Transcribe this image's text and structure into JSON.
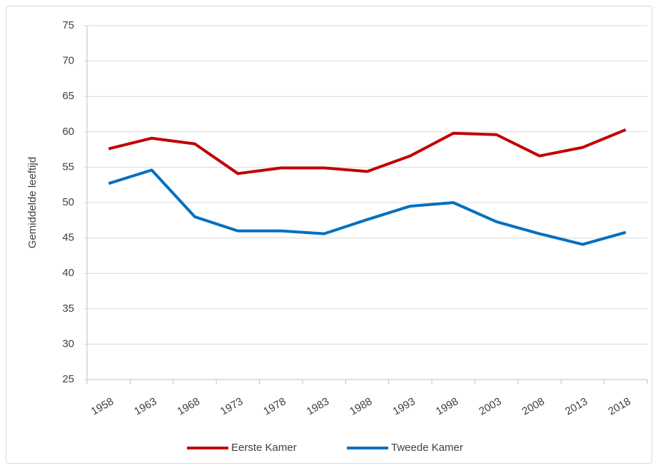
{
  "chart_data": {
    "type": "line",
    "y_label": "Gemiddelde  leeftijd",
    "categories": [
      "1958",
      "1963",
      "1968",
      "1973",
      "1978",
      "1983",
      "1988",
      "1993",
      "1998",
      "2003",
      "2008",
      "2013",
      "2018"
    ],
    "series": [
      {
        "name": "Eerste Kamer",
        "color": "#c00000",
        "values": [
          57.6,
          59.1,
          58.3,
          54.1,
          54.9,
          54.9,
          54.4,
          56.6,
          59.8,
          59.6,
          56.6,
          57.8,
          60.3
        ]
      },
      {
        "name": "Tweede Kamer",
        "color": "#0070c0",
        "values": [
          52.7,
          54.6,
          48.0,
          46.0,
          46.0,
          45.6,
          47.6,
          49.5,
          50.0,
          47.3,
          45.6,
          44.1,
          45.8
        ]
      }
    ],
    "ylim": [
      25,
      75
    ],
    "yticks": [
      25,
      30,
      35,
      40,
      45,
      50,
      55,
      60,
      65,
      70,
      75
    ],
    "grid": true,
    "legend": "bottom"
  }
}
